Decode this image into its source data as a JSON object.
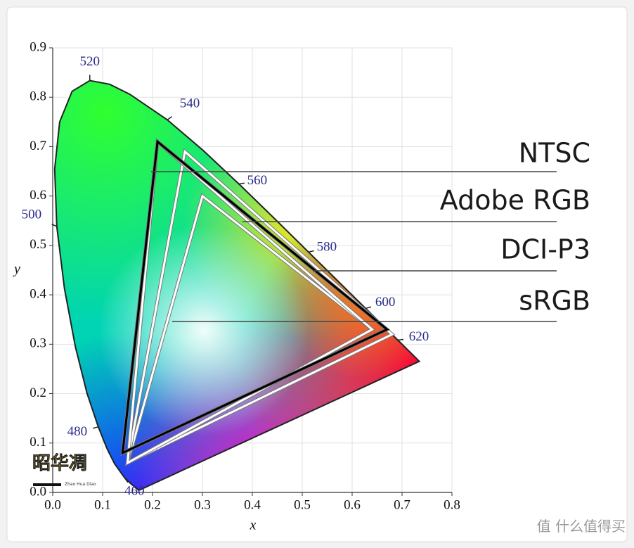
{
  "chart_data": {
    "type": "chromaticity",
    "x_label": "x",
    "y_label": "y",
    "xlim": [
      0,
      0.8
    ],
    "ylim": [
      0,
      0.9
    ],
    "xticks": [
      {
        "value": 0,
        "label": "0.0"
      },
      0.1,
      0.2,
      0.3,
      0.4,
      0.5,
      0.6,
      0.7,
      0.8
    ],
    "yticks": [
      {
        "value": 0,
        "label": "0.0"
      },
      0.1,
      0.2,
      0.3,
      0.4,
      0.5,
      0.6,
      0.7,
      0.8,
      0.9
    ],
    "grid": true,
    "spectral_locus": {
      "x": [
        0.1741,
        0.1733,
        0.1714,
        0.1689,
        0.1644,
        0.1566,
        0.144,
        0.1241,
        0.1096,
        0.0913,
        0.0687,
        0.0454,
        0.0235,
        0.0082,
        0.0039,
        0.0139,
        0.0389,
        0.0743,
        0.1142,
        0.1547,
        0.2296,
        0.3016,
        0.3731,
        0.4441,
        0.5125,
        0.5752,
        0.627,
        0.6658,
        0.6915,
        0.719,
        0.73,
        0.7347
      ],
      "y": [
        0.005,
        0.0048,
        0.0051,
        0.0069,
        0.0109,
        0.0177,
        0.0297,
        0.0578,
        0.0868,
        0.1327,
        0.2007,
        0.295,
        0.4127,
        0.5384,
        0.6548,
        0.7502,
        0.812,
        0.8338,
        0.8262,
        0.8059,
        0.7543,
        0.6923,
        0.6245,
        0.5547,
        0.4866,
        0.4242,
        0.3725,
        0.334,
        0.3083,
        0.2809,
        0.27,
        0.2653
      ]
    },
    "wavelength_labels": {
      "color": "#2a2a8c",
      "values": [
        460,
        480,
        500,
        520,
        540,
        560,
        580,
        600,
        620
      ],
      "x": [
        0.144,
        0.0913,
        0.0082,
        0.0743,
        0.2296,
        0.3731,
        0.5125,
        0.627,
        0.6915
      ],
      "y": [
        0.0297,
        0.1327,
        0.5384,
        0.8338,
        0.7543,
        0.6245,
        0.4866,
        0.3725,
        0.3083
      ]
    },
    "series": [
      {
        "name": "NTSC",
        "color": "#000000",
        "x": [
          0.67,
          0.21,
          0.14
        ],
        "y": [
          0.33,
          0.71,
          0.08
        ]
      },
      {
        "name": "Adobe RGB",
        "color": "#ffffff",
        "x": [
          0.64,
          0.21,
          0.15
        ],
        "y": [
          0.33,
          0.71,
          0.06
        ]
      },
      {
        "name": "DCI-P3",
        "color": "#ffffff",
        "x": [
          0.68,
          0.265,
          0.15
        ],
        "y": [
          0.32,
          0.69,
          0.06
        ]
      },
      {
        "name": "sRGB",
        "color": "#ffffff",
        "x": [
          0.64,
          0.3,
          0.15
        ],
        "y": [
          0.33,
          0.6,
          0.06
        ]
      }
    ]
  },
  "watermarks": {
    "logo": "昭华凋",
    "logo_sub": "Zhao Hua Diao",
    "site": "值 什么值得买"
  }
}
